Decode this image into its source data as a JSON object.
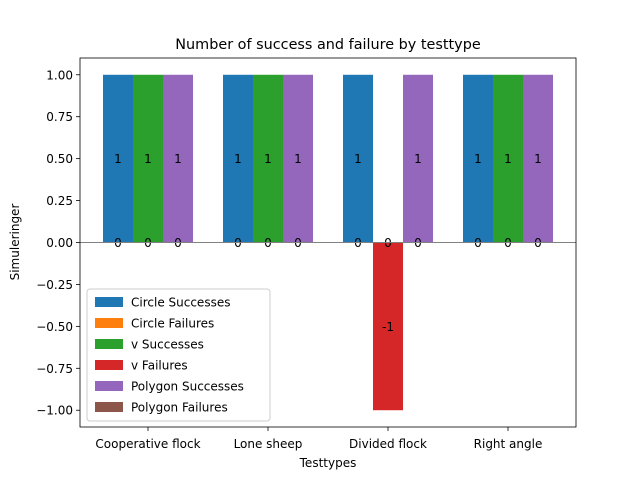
{
  "chart_data": {
    "type": "bar",
    "title": "Number of success and failure by testtype",
    "xlabel": "Testtypes",
    "ylabel": "Simuleringer",
    "categories": [
      "Cooperative flock",
      "Lone sheep",
      "Divided flock",
      "Right angle"
    ],
    "ylim": [
      -1.1,
      1.1
    ],
    "yticks": [
      -1.0,
      -0.75,
      -0.5,
      -0.25,
      0.0,
      0.25,
      0.5,
      0.75,
      1.0
    ],
    "ytick_labels": [
      "−1.00",
      "−0.75",
      "−0.50",
      "−0.25",
      "0.00",
      "0.25",
      "0.50",
      "0.75",
      "1.00"
    ],
    "legend_position": "lower-left",
    "grid": false,
    "series": [
      {
        "name": "Circle Successes",
        "color": "#1f77b4",
        "values": [
          1,
          1,
          1,
          1
        ],
        "labels": [
          "1",
          "1",
          "1",
          "1"
        ]
      },
      {
        "name": "Circle Failures",
        "color": "#ff7f0e",
        "values": [
          0,
          0,
          0,
          0
        ],
        "labels": [
          "0",
          "0",
          "0",
          "0"
        ]
      },
      {
        "name": "v Successes",
        "color": "#2ca02c",
        "values": [
          1,
          1,
          0,
          1
        ],
        "labels": [
          "1",
          "1",
          "0",
          "1"
        ]
      },
      {
        "name": "v Failures",
        "color": "#d62728",
        "values": [
          0,
          0,
          -1,
          0
        ],
        "labels": [
          "0",
          "0",
          "-1",
          "0"
        ]
      },
      {
        "name": "Polygon Successes",
        "color": "#9467bd",
        "values": [
          1,
          1,
          1,
          1
        ],
        "labels": [
          "1",
          "1",
          "1",
          "1"
        ]
      },
      {
        "name": "Polygon Failures",
        "color": "#8c564b",
        "values": [
          0,
          0,
          0,
          0
        ],
        "labels": [
          "0",
          "0",
          "0",
          "0"
        ]
      }
    ]
  }
}
